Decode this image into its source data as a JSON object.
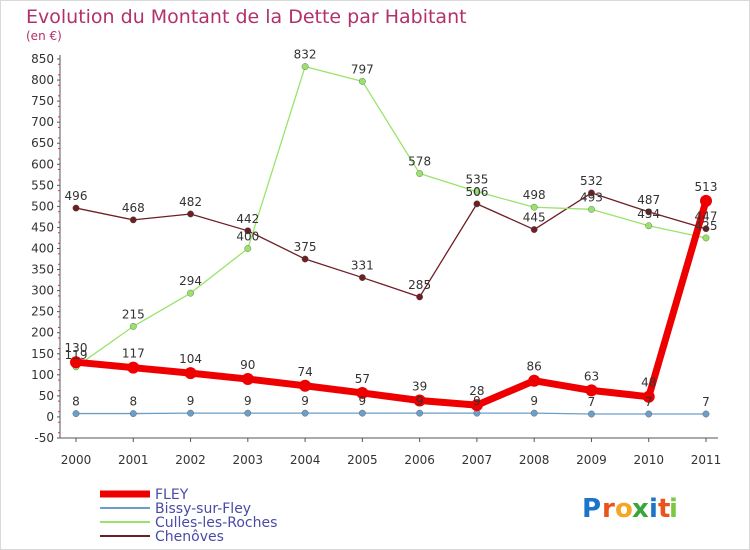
{
  "chart_data": {
    "type": "line",
    "title": "Evolution du Montant de la Dette par Habitant",
    "subtitle": "(en €)",
    "xlabel": "",
    "ylabel": "",
    "categories": [
      "2000",
      "2001",
      "2002",
      "2003",
      "2004",
      "2005",
      "2006",
      "2007",
      "2008",
      "2009",
      "2010",
      "2011"
    ],
    "ylim": [
      -50,
      850
    ],
    "yticks": [
      -50,
      0,
      50,
      100,
      150,
      200,
      250,
      300,
      350,
      400,
      450,
      500,
      550,
      600,
      650,
      700,
      750,
      800,
      850
    ],
    "grid": false,
    "legend_position": "bottom-left",
    "series": [
      {
        "name": "Chenôves",
        "color": "#6e1f24",
        "values": [
          496,
          468,
          482,
          442,
          375,
          331,
          285,
          506,
          445,
          532,
          487,
          447
        ]
      },
      {
        "name": "Culles-les-Roches",
        "color": "#99e36a",
        "values": [
          119,
          215,
          294,
          400,
          832,
          797,
          578,
          535,
          498,
          493,
          454,
          425
        ]
      },
      {
        "name": "Bissy-sur-Fley",
        "color": "#6b9ec9",
        "values": [
          8,
          8,
          9,
          9,
          9,
          9,
          9,
          9,
          9,
          7,
          7,
          7
        ]
      },
      {
        "name": "FLEY",
        "color": "#ee0000",
        "values": [
          130,
          117,
          104,
          90,
          74,
          57,
          39,
          28,
          86,
          63,
          48,
          513
        ]
      }
    ]
  },
  "legend": [
    {
      "label": "FLEY",
      "color": "#ee0000"
    },
    {
      "label": "Bissy-sur-Fley",
      "color": "#6b9ec9"
    },
    {
      "label": "Culles-les-Roches",
      "color": "#99e36a"
    },
    {
      "label": "Chenôves",
      "color": "#6e1f24"
    }
  ],
  "brand": {
    "letters": [
      "P",
      "r",
      "o",
      "x",
      "i",
      "t",
      "i"
    ],
    "colors": [
      "#1d74c9",
      "#e8541b",
      "#f6a623",
      "#3aa53a",
      "#1d74c9",
      "#e8541b",
      "#7ac943"
    ]
  }
}
